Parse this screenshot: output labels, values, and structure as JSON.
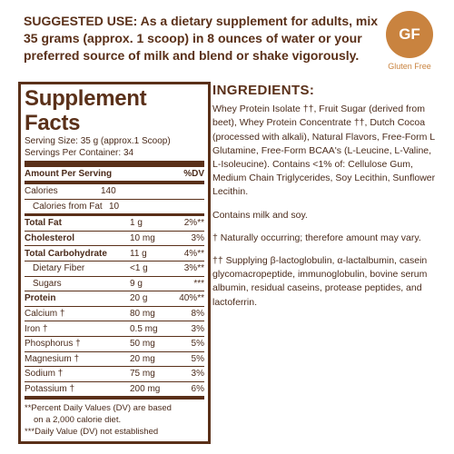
{
  "suggested_use": {
    "label": "SUGGESTED USE:",
    "text": "As a dietary supplement for adults, mix 35 grams (approx. 1 scoop) in 8 ounces of water or your preferred source of milk and blend or shake vigorously."
  },
  "badge": {
    "initials": "GF",
    "caption": "Gluten Free",
    "color": "#c9833f"
  },
  "facts": {
    "title": "Supplement Facts",
    "serving_size": "Serving Size: 35 g (approx.1 Scoop)",
    "servings_per_container": "Servings Per Container: 34",
    "header_amount": "Amount Per Serving",
    "header_dv": "%DV",
    "calories": {
      "name": "Calories",
      "amount": "140"
    },
    "calories_fat": {
      "name": "Calories from Fat",
      "amount": "10"
    },
    "rows": [
      {
        "name": "Total Fat",
        "amount": "1 g",
        "dv": "2%**"
      },
      {
        "name": "Cholesterol",
        "amount": "10 mg",
        "dv": "3%"
      },
      {
        "name": "Total Carbohydrate",
        "amount": "11 g",
        "dv": "4%**"
      },
      {
        "name": "Dietary Fiber",
        "amount": "<1 g",
        "dv": "3%**"
      },
      {
        "name": "Sugars",
        "amount": "9 g",
        "dv": "***"
      },
      {
        "name": "Protein",
        "amount": "20 g",
        "dv": "40%**"
      },
      {
        "name": "Calcium †",
        "amount": "80 mg",
        "dv": "8%"
      },
      {
        "name": "Iron †",
        "amount": "0.5 mg",
        "dv": "3%"
      },
      {
        "name": "Phosphorus †",
        "amount": "50 mg",
        "dv": "5%"
      },
      {
        "name": "Magnesium †",
        "amount": "20 mg",
        "dv": "5%"
      },
      {
        "name": "Sodium †",
        "amount": "75 mg",
        "dv": "3%"
      },
      {
        "name": "Potassium †",
        "amount": "200 mg",
        "dv": "6%"
      }
    ],
    "footnote_1a": "**Percent Daily Values (DV) are based",
    "footnote_1b": "on a 2,000 calorie diet.",
    "footnote_2": "***Daily Value (DV) not established"
  },
  "ingredients": {
    "heading": "INGREDIENTS:",
    "list": "Whey Protein Isolate ††, Fruit Sugar (derived from beet), Whey Protein Concentrate ††, Dutch Cocoa (processed with alkali), Natural Flavors, Free-Form L Glutamine, Free-Form BCAA's (L-Leucine, L-Valine, L-Isoleucine). Contains <1% of: Cellulose Gum, Medium Chain Triglycerides, Soy Lecithin, Sunflower Lecithin.",
    "allergen": "Contains milk and soy.",
    "note_1": "† Naturally occurring; therefore amount may vary.",
    "note_2": "†† Supplying β-lactoglobulin, α-lactalbumin, casein glycomacropeptide, immunoglobulin, bovine serum albumin, residual caseins, protease peptides, and lactoferrin."
  }
}
